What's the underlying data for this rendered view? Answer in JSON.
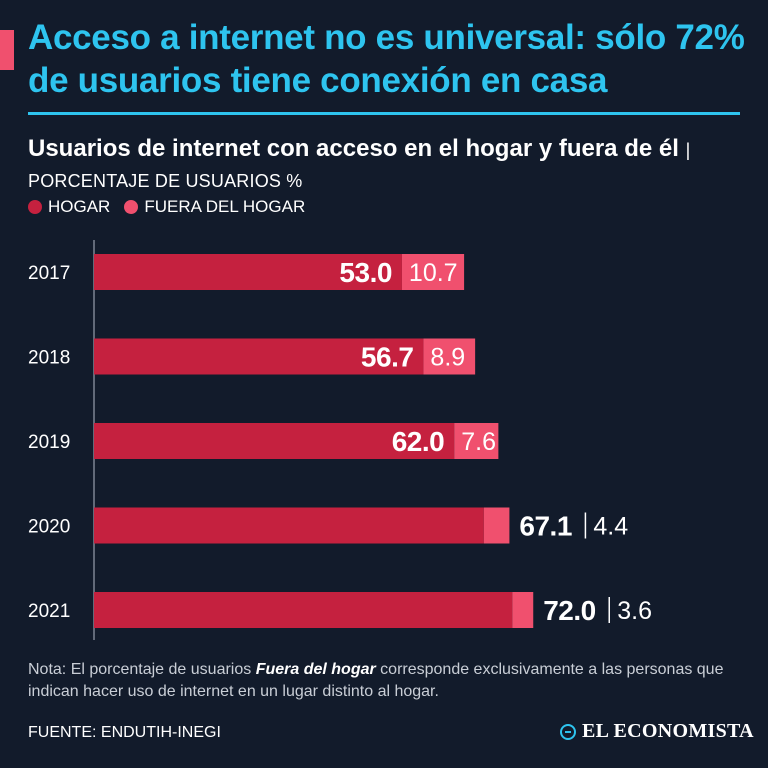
{
  "headline": "Acceso a internet no es universal: sólo 72% de usuarios tiene conexión en casa",
  "subtitle": {
    "title": "Usuarios de internet con acceso en el hogar y fuera de él",
    "units": "| PORCENTAJE DE USUARIOS %"
  },
  "chart_data": {
    "type": "bar",
    "orientation": "horizontal",
    "stacked": true,
    "categories": [
      "2017",
      "2018",
      "2019",
      "2020",
      "2021"
    ],
    "series": [
      {
        "name": "HOGAR",
        "values": [
          53.0,
          56.7,
          62.0,
          67.1,
          72.0
        ],
        "labels": [
          "53.0",
          "56.7",
          "62.0",
          "67.1",
          "72.0"
        ]
      },
      {
        "name": "FUERA DEL HOGAR",
        "values": [
          10.7,
          8.9,
          7.6,
          4.4,
          3.6
        ],
        "labels": [
          "10.7",
          "8.9",
          "7.6",
          "4.4",
          "3.6"
        ]
      }
    ],
    "xlim": [
      0,
      100
    ],
    "colors": {
      "home": "#c5213f",
      "outside": "#f0506e"
    }
  },
  "note": {
    "prefix": "Nota: El porcentaje de usuarios ",
    "emphasis": "Fuera del hogar",
    "suffix": " corresponde exclusivamente a las personas que indican hacer uso de internet en un lugar distinto al hogar."
  },
  "source": "FUENTE: ENDUTIH-INEGI",
  "logo": "EL ECONOMISTA",
  "colors": {
    "background": "#121b2b",
    "accent": "#2ec4ef",
    "highlight": "#f0506e"
  }
}
